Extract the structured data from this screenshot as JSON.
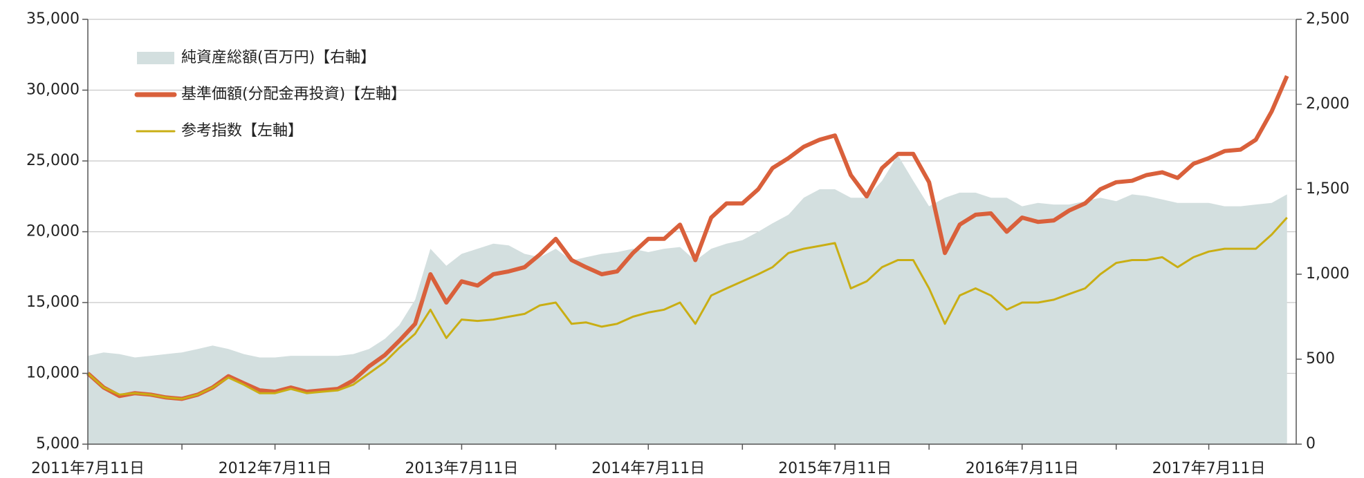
{
  "chart_data": {
    "type": "line",
    "x": [
      "2011-07-11",
      "2011-08-11",
      "2011-09-11",
      "2011-10-11",
      "2011-11-11",
      "2011-12-11",
      "2012-01-11",
      "2012-02-11",
      "2012-03-11",
      "2012-04-11",
      "2012-05-11",
      "2012-06-11",
      "2012-07-11",
      "2012-08-11",
      "2012-09-11",
      "2012-10-11",
      "2012-11-11",
      "2012-12-11",
      "2013-01-11",
      "2013-02-11",
      "2013-03-11",
      "2013-04-11",
      "2013-05-11",
      "2013-06-11",
      "2013-07-11",
      "2013-08-11",
      "2013-09-11",
      "2013-10-11",
      "2013-11-11",
      "2013-12-11",
      "2014-01-11",
      "2014-02-11",
      "2014-03-11",
      "2014-04-11",
      "2014-05-11",
      "2014-06-11",
      "2014-07-11",
      "2014-08-11",
      "2014-09-11",
      "2014-10-11",
      "2014-11-11",
      "2014-12-11",
      "2015-01-11",
      "2015-02-11",
      "2015-03-11",
      "2015-04-11",
      "2015-05-11",
      "2015-06-11",
      "2015-07-11",
      "2015-08-11",
      "2015-09-11",
      "2015-10-11",
      "2015-11-11",
      "2015-12-11",
      "2016-01-11",
      "2016-02-11",
      "2016-03-11",
      "2016-04-11",
      "2016-05-11",
      "2016-06-11",
      "2016-07-11",
      "2016-08-11",
      "2016-09-11",
      "2016-10-11",
      "2016-11-11",
      "2016-12-11",
      "2017-01-11",
      "2017-02-11",
      "2017-03-11",
      "2017-04-11",
      "2017-05-11",
      "2017-06-11",
      "2017-07-11",
      "2017-08-11",
      "2017-09-11",
      "2017-10-11",
      "2017-11-11",
      "2017-12-11"
    ],
    "series": [
      {
        "name": "純資産総額(百万円)【右軸】",
        "color": "#d3dfdf",
        "kind": "area",
        "axis": "y2",
        "values": [
          520,
          540,
          530,
          510,
          520,
          530,
          540,
          560,
          580,
          560,
          530,
          510,
          510,
          520,
          520,
          520,
          520,
          530,
          560,
          620,
          700,
          850,
          1150,
          1050,
          1120,
          1150,
          1180,
          1170,
          1120,
          1100,
          1150,
          1080,
          1100,
          1120,
          1130,
          1150,
          1130,
          1150,
          1160,
          1080,
          1150,
          1180,
          1200,
          1250,
          1300,
          1350,
          1450,
          1500,
          1500,
          1450,
          1450,
          1550,
          1700,
          1550,
          1400,
          1450,
          1480,
          1480,
          1450,
          1450,
          1400,
          1420,
          1410,
          1410,
          1430,
          1450,
          1430,
          1470,
          1460,
          1440,
          1420,
          1420,
          1420,
          1400,
          1400,
          1410,
          1420,
          1470
        ]
      },
      {
        "name": "基準価額(分配金再投資)【左軸】",
        "color": "#d9603b",
        "kind": "line",
        "values": [
          10000,
          9000,
          8400,
          8600,
          8500,
          8300,
          8200,
          8500,
          9000,
          9800,
          9300,
          8800,
          8700,
          9000,
          8700,
          8800,
          8900,
          9500,
          10500,
          11300,
          12300,
          13500,
          17000,
          15000,
          16500,
          16200,
          17000,
          17200,
          17500,
          18400,
          19500,
          18000,
          17500,
          17000,
          17200,
          18500,
          19500,
          19500,
          20500,
          18000,
          21000,
          22000,
          22000,
          23000,
          24500,
          25200,
          26000,
          26500,
          26800,
          24000,
          22500,
          24500,
          25500,
          25500,
          23500,
          18500,
          20500,
          21200,
          21300,
          20000,
          21000,
          20700,
          20800,
          21500,
          22000,
          23000,
          23500,
          23600,
          24000,
          24200,
          23800,
          24800,
          25200,
          25700,
          25800,
          26500,
          28500,
          31000
        ]
      },
      {
        "name": "参考指数【左軸】",
        "color": "#c9ae14",
        "kind": "line",
        "values": [
          10000,
          9000,
          8500,
          8600,
          8500,
          8300,
          8200,
          8500,
          9000,
          9700,
          9200,
          8600,
          8600,
          8900,
          8600,
          8700,
          8800,
          9200,
          10000,
          10800,
          11800,
          12800,
          14500,
          12500,
          13800,
          13700,
          13800,
          14000,
          14200,
          14800,
          15000,
          13500,
          13600,
          13300,
          13500,
          14000,
          14300,
          14500,
          15000,
          13500,
          15500,
          16000,
          16500,
          17000,
          17500,
          18500,
          18800,
          19000,
          19200,
          16000,
          16500,
          17500,
          18000,
          18000,
          16000,
          13500,
          15500,
          16000,
          15500,
          14500,
          15000,
          15000,
          15200,
          15600,
          16000,
          17000,
          17800,
          18000,
          18000,
          18200,
          17500,
          18200,
          18600,
          18800,
          18800,
          18800,
          19800,
          21000
        ]
      }
    ],
    "xlim": [
      "2011-07-11",
      "2017-12-29"
    ],
    "xticks": [
      {
        "value": "2011-07-11",
        "label": "2011年7月11日"
      },
      {
        "value": "2012-07-11",
        "label": "2012年7月11日"
      },
      {
        "value": "2013-07-11",
        "label": "2013年7月11日"
      },
      {
        "value": "2014-07-11",
        "label": "2014年7月11日"
      },
      {
        "value": "2015-07-11",
        "label": "2015年7月11日"
      },
      {
        "value": "2016-07-11",
        "label": "2016年7月11日"
      },
      {
        "value": "2017-07-11",
        "label": "2017年7月11日"
      }
    ],
    "xminorticks": [
      "2012-01-11",
      "2013-01-11",
      "2014-01-11",
      "2015-01-11",
      "2016-01-11",
      "2017-01-11"
    ],
    "ylim": [
      5000,
      35000
    ],
    "yticks": [
      {
        "value": 5000,
        "label": "5,000"
      },
      {
        "value": 10000,
        "label": "10,000"
      },
      {
        "value": 15000,
        "label": "15,000"
      },
      {
        "value": 20000,
        "label": "20,000"
      },
      {
        "value": 25000,
        "label": "25,000"
      },
      {
        "value": 30000,
        "label": "30,000"
      },
      {
        "value": 35000,
        "label": "35,000"
      }
    ],
    "y2lim": [
      0,
      2500
    ],
    "y2ticks": [
      0,
      500,
      {
        "value": 1000,
        "label": "1,000"
      },
      {
        "value": 1500,
        "label": "1,500"
      },
      {
        "value": 2000,
        "label": "2,000"
      },
      {
        "value": 2500,
        "label": "2,500"
      }
    ],
    "grid": true,
    "legend": "upper left"
  }
}
